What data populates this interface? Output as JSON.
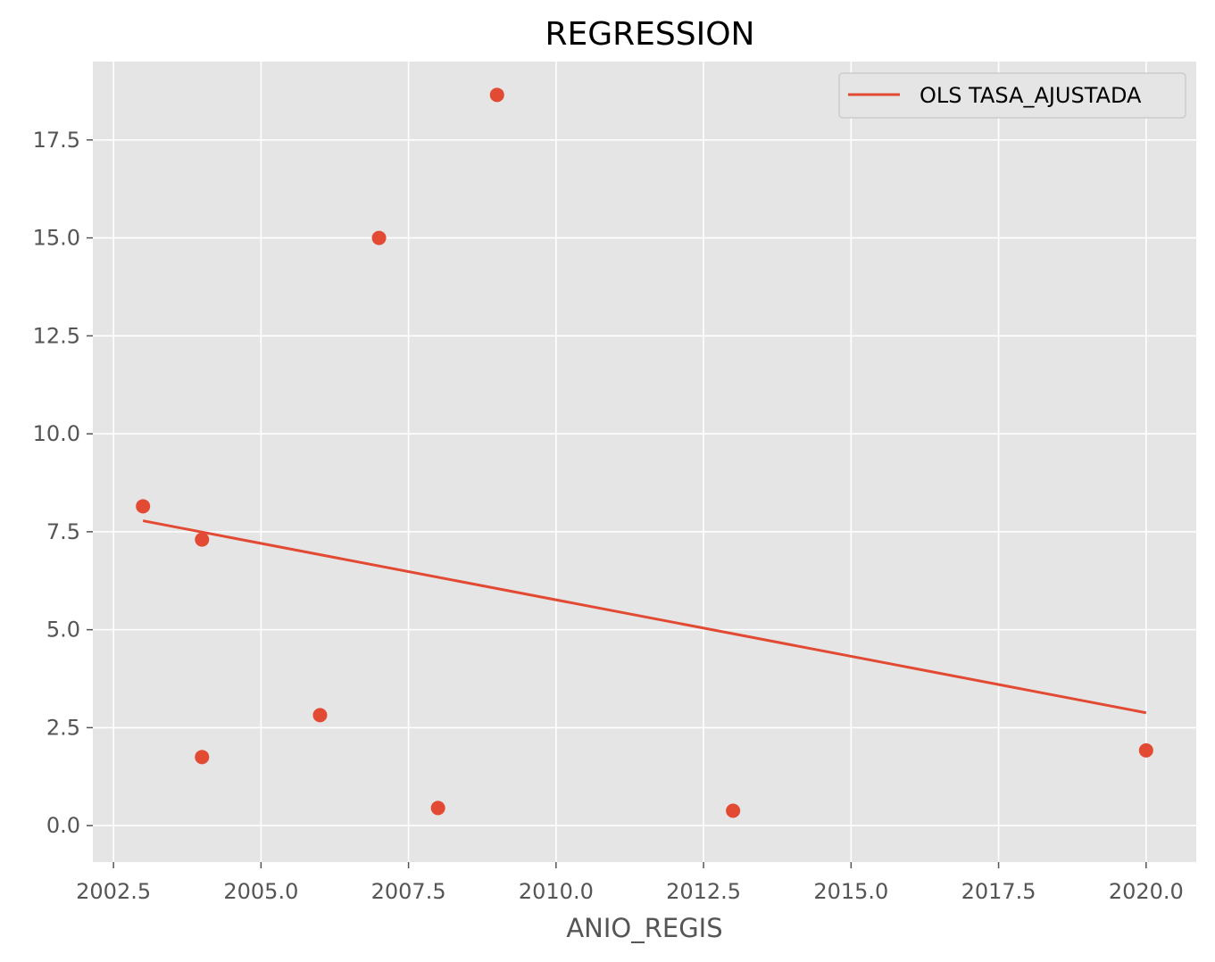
{
  "chart_data": {
    "type": "scatter",
    "title": "REGRESSION",
    "xlabel": "ANIO_REGIS",
    "ylabel": "",
    "xlim": [
      2002.15,
      2020.85
    ],
    "ylim": [
      -0.93,
      19.5
    ],
    "x_ticks": [
      "2002.5",
      "2005.0",
      "2007.5",
      "2010.0",
      "2012.5",
      "2015.0",
      "2017.5",
      "2020.0"
    ],
    "y_ticks": [
      "0.0",
      "2.5",
      "5.0",
      "7.5",
      "10.0",
      "12.5",
      "15.0",
      "17.5"
    ],
    "grid": true,
    "legend_position": "top-right",
    "series": [
      {
        "kind": "scatter",
        "color": "#E24A33",
        "points": [
          {
            "x": 2003,
            "y": 8.15
          },
          {
            "x": 2004,
            "y": 7.3
          },
          {
            "x": 2004,
            "y": 1.75
          },
          {
            "x": 2006,
            "y": 2.82
          },
          {
            "x": 2007,
            "y": 15.0
          },
          {
            "x": 2008,
            "y": 0.45
          },
          {
            "x": 2009,
            "y": 18.65
          },
          {
            "x": 2013,
            "y": 0.38
          },
          {
            "x": 2020,
            "y": 1.92
          }
        ]
      },
      {
        "kind": "line",
        "name": "OLS TASA_AJUSTADA",
        "color": "#E24A33",
        "points": [
          {
            "x": 2003,
            "y": 7.78
          },
          {
            "x": 2020,
            "y": 2.88
          }
        ]
      }
    ],
    "colors": {
      "plot_background": "#E5E5E5",
      "grid": "#FFFFFF",
      "tick_text": "#555555",
      "series": "#E24A33"
    }
  }
}
